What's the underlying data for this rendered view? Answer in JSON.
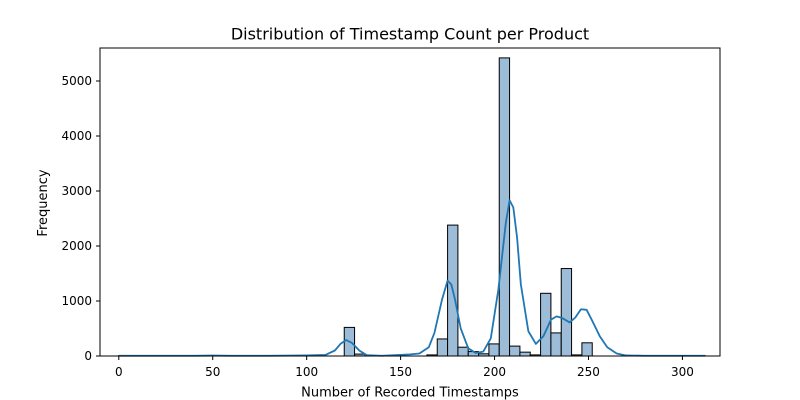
{
  "chart_data": {
    "type": "bar",
    "title": "Distribution of Timestamp Count per Product",
    "xlabel": "Number of Recorded Timestamps",
    "ylabel": "Frequency",
    "xlim": [
      -10,
      320
    ],
    "ylim": [
      0,
      5600
    ],
    "x_ticks": [
      0,
      50,
      100,
      150,
      200,
      250,
      300
    ],
    "y_ticks": [
      0,
      1000,
      2000,
      3000,
      4000,
      5000
    ],
    "grid": false,
    "legend": "none",
    "histogram": {
      "bin_width": 5.5,
      "bins": [
        {
          "start": 120.0,
          "end": 125.5,
          "value": 520
        },
        {
          "start": 125.5,
          "end": 131.0,
          "value": 35
        },
        {
          "start": 164.0,
          "end": 169.5,
          "value": 20
        },
        {
          "start": 169.5,
          "end": 175.0,
          "value": 310
        },
        {
          "start": 175.0,
          "end": 180.5,
          "value": 2380
        },
        {
          "start": 180.5,
          "end": 186.0,
          "value": 160
        },
        {
          "start": 186.0,
          "end": 191.5,
          "value": 80
        },
        {
          "start": 191.5,
          "end": 197.0,
          "value": 40
        },
        {
          "start": 197.0,
          "end": 202.5,
          "value": 220
        },
        {
          "start": 202.5,
          "end": 208.0,
          "value": 5420
        },
        {
          "start": 208.0,
          "end": 213.5,
          "value": 180
        },
        {
          "start": 213.5,
          "end": 219.0,
          "value": 70
        },
        {
          "start": 219.0,
          "end": 224.5,
          "value": 20
        },
        {
          "start": 224.5,
          "end": 230.0,
          "value": 1140
        },
        {
          "start": 230.0,
          "end": 235.5,
          "value": 420
        },
        {
          "start": 235.5,
          "end": 241.0,
          "value": 1590
        },
        {
          "start": 241.0,
          "end": 246.5,
          "value": 20
        },
        {
          "start": 246.5,
          "end": 252.0,
          "value": 240
        }
      ]
    },
    "kde": {
      "x": [
        0,
        20,
        40,
        50,
        60,
        80,
        100,
        110,
        115,
        118,
        121,
        124,
        128,
        132,
        140,
        150,
        155,
        160,
        165,
        168,
        172,
        175,
        177,
        179,
        182,
        186,
        190,
        194,
        198,
        202,
        206,
        208,
        210,
        212,
        214,
        218,
        222,
        226,
        230,
        233,
        236,
        240,
        243,
        246,
        249,
        252,
        256,
        260,
        265,
        270,
        280,
        290,
        300,
        312
      ],
      "y": [
        5,
        5,
        5,
        8,
        5,
        5,
        10,
        20,
        100,
        220,
        290,
        240,
        100,
        15,
        5,
        20,
        30,
        45,
        160,
        420,
        1020,
        1370,
        1300,
        1020,
        500,
        140,
        55,
        80,
        320,
        1200,
        2420,
        2830,
        2700,
        2150,
        1300,
        450,
        220,
        360,
        660,
        720,
        690,
        610,
        700,
        850,
        840,
        640,
        360,
        160,
        45,
        10,
        5,
        5,
        5,
        5
      ]
    },
    "colors": {
      "bar_fill": "#9dbcd8",
      "bar_edge": "#000000",
      "kde_line": "#1f77b4",
      "axes": "#000000"
    }
  }
}
